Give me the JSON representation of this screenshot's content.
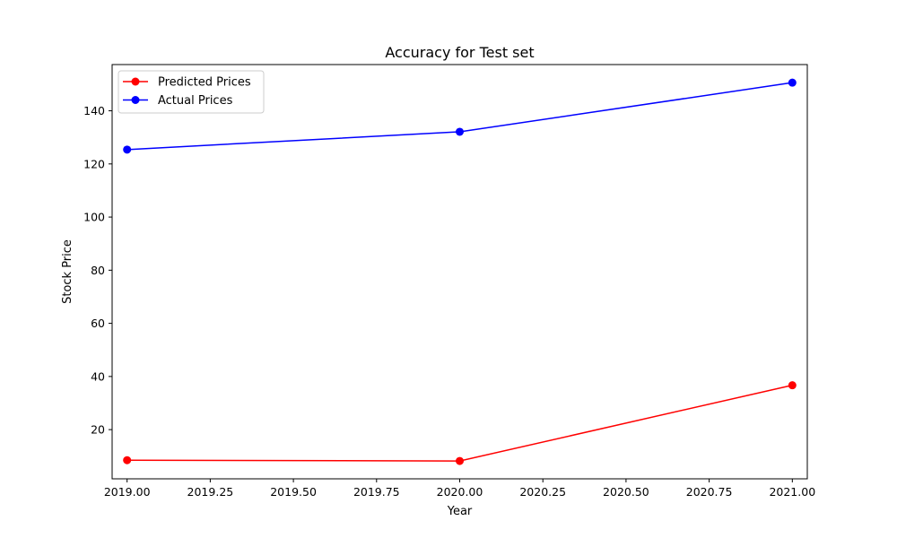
{
  "chart_data": {
    "type": "line",
    "title": "Accuracy for Test set",
    "xlabel": "Year",
    "ylabel": "Stock Price",
    "xlim": [
      2018.955,
      2021.045
    ],
    "ylim": [
      1.48,
      157.4
    ],
    "xticks": [
      2019.0,
      2019.25,
      2019.5,
      2019.75,
      2020.0,
      2020.25,
      2020.5,
      2020.75,
      2021.0
    ],
    "xtick_labels": [
      "2019.00",
      "2019.25",
      "2019.50",
      "2019.75",
      "2020.00",
      "2020.25",
      "2020.50",
      "2020.75",
      "2021.00"
    ],
    "yticks": [
      20,
      40,
      60,
      80,
      100,
      120,
      140
    ],
    "ytick_labels": [
      "20",
      "40",
      "60",
      "80",
      "100",
      "120",
      "140"
    ],
    "grid": false,
    "legend_position": "top-left",
    "x": [
      2019,
      2020,
      2021
    ],
    "series": [
      {
        "name": "Predicted Prices",
        "color": "#ff0000",
        "values": [
          8.5,
          8.2,
          36.7
        ]
      },
      {
        "name": "Actual Prices",
        "color": "#0000ff",
        "values": [
          125.4,
          132.1,
          150.6
        ]
      }
    ]
  }
}
